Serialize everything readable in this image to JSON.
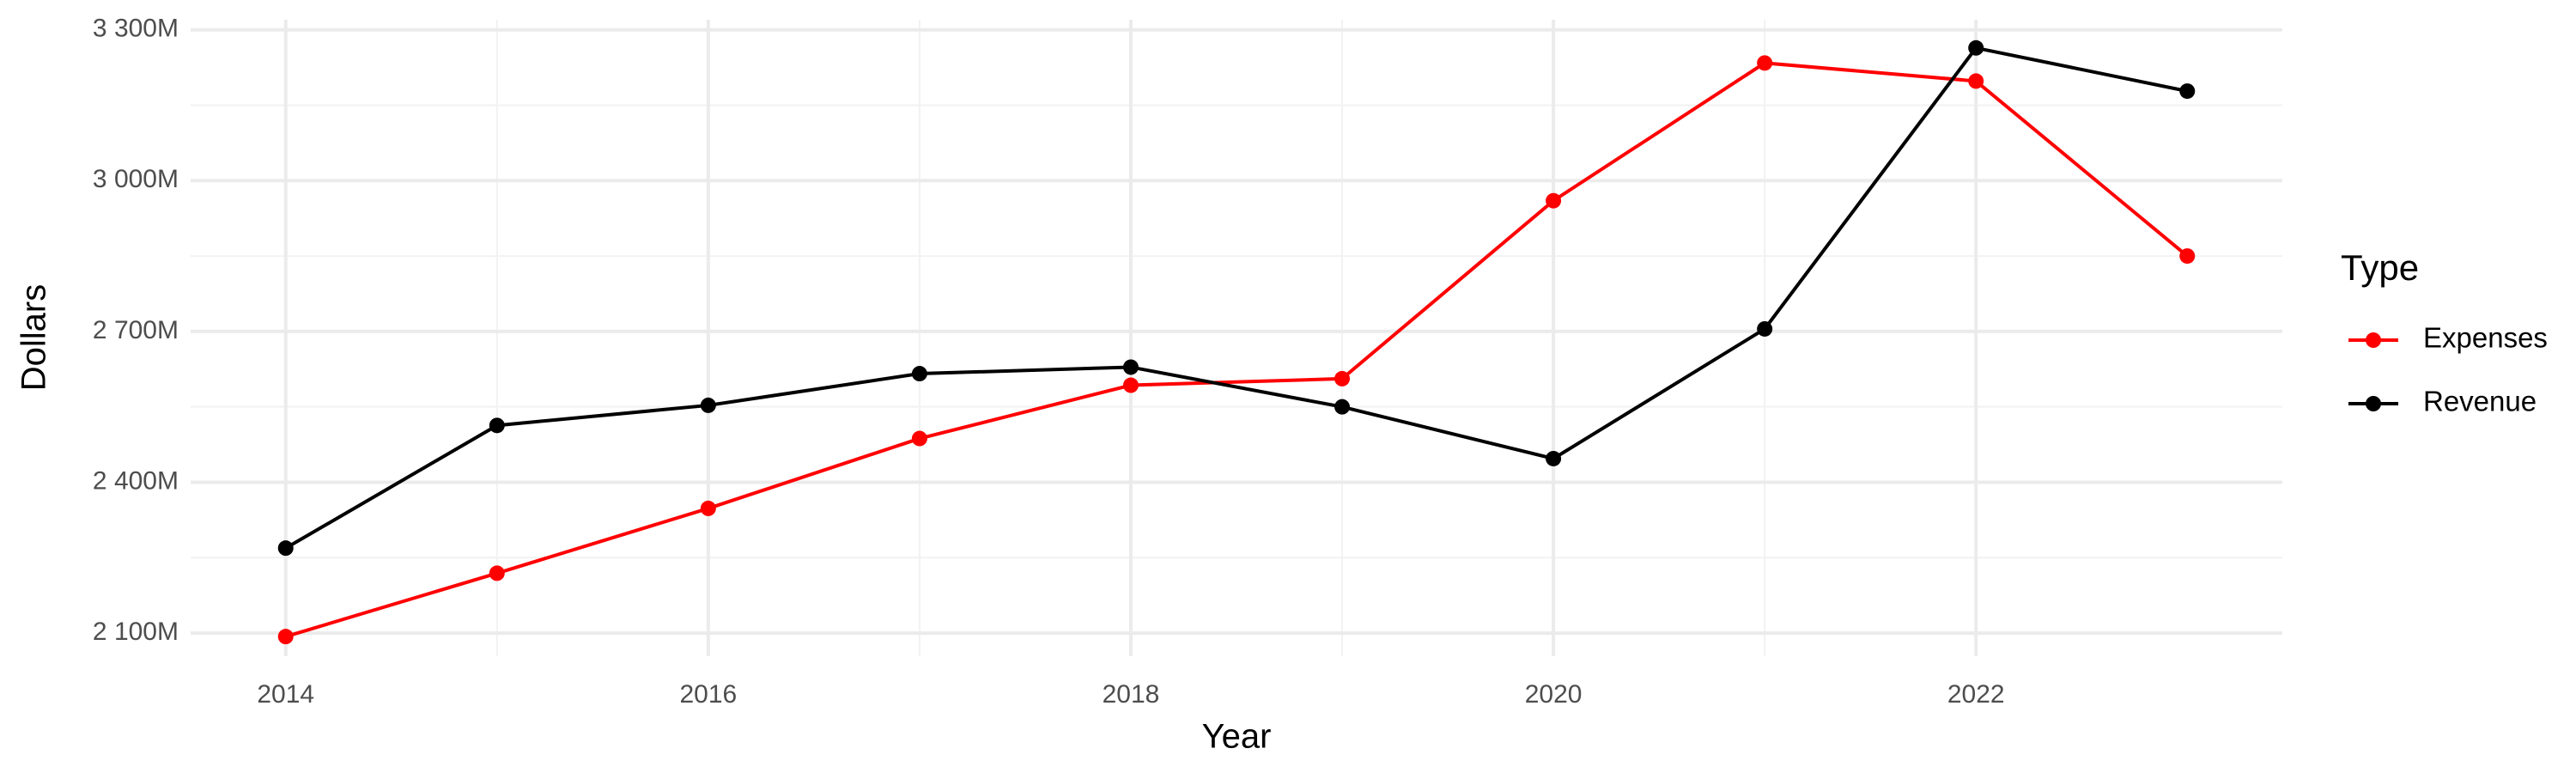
{
  "chart_data": {
    "type": "line",
    "x_label": "Year",
    "y_label": "Dollars",
    "legend_title": "Type",
    "x": [
      2014,
      2015,
      2016,
      2017,
      2018,
      2019,
      2020,
      2021,
      2022,
      2023
    ],
    "series": [
      {
        "name": "Expenses",
        "color": "#ff0000",
        "values": [
          2093,
          2219,
          2348,
          2487,
          2593,
          2606,
          2960,
          3234,
          3198,
          2850
        ]
      },
      {
        "name": "Revenue",
        "color": "#000000",
        "values": [
          2269,
          2513,
          2553,
          2616,
          2629,
          2550,
          2447,
          2705,
          3264,
          3178
        ]
      }
    ],
    "xlim": [
      2013.55,
      2023.45
    ],
    "xticks": [
      2014,
      2016,
      2018,
      2020,
      2022
    ],
    "ylim": [
      2054,
      3320
    ],
    "yticks": [
      {
        "value": 2100,
        "label": "2 100M"
      },
      {
        "value": 2400,
        "label": "2 400M"
      },
      {
        "value": 2700,
        "label": "2 700M"
      },
      {
        "value": 3000,
        "label": "3 000M"
      },
      {
        "value": 3300,
        "label": "3 300M"
      }
    ],
    "grid": true,
    "legend_position": "right"
  }
}
